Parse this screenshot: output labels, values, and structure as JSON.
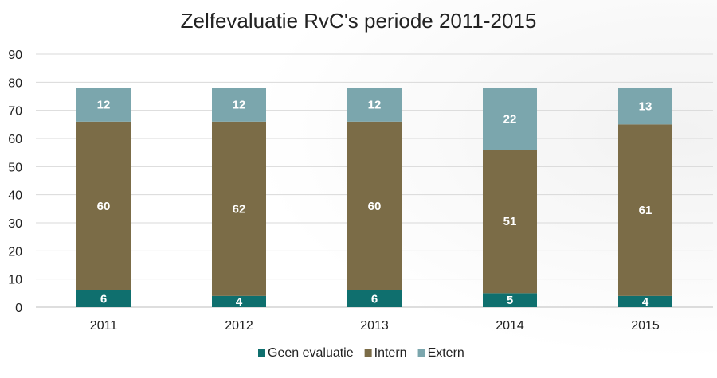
{
  "chart_data": {
    "type": "bar",
    "stacked": true,
    "title": "Zelfevaluatie RvC's periode 2011-2015",
    "xlabel": "",
    "ylabel": "",
    "categories": [
      "2011",
      "2012",
      "2013",
      "2014",
      "2015"
    ],
    "series": [
      {
        "name": "Geen evaluatie",
        "color": "#0f6f6e",
        "values": [
          6,
          4,
          6,
          5,
          4
        ]
      },
      {
        "name": "Intern",
        "color": "#7b6c47",
        "values": [
          60,
          62,
          60,
          51,
          61
        ]
      },
      {
        "name": "Extern",
        "color": "#7ba6ad",
        "values": [
          12,
          12,
          12,
          22,
          13
        ]
      }
    ],
    "ylim": [
      0,
      90
    ],
    "yticks": [
      0,
      10,
      20,
      30,
      40,
      50,
      60,
      70,
      80,
      90
    ],
    "grid": true,
    "legend_position": "bottom"
  }
}
